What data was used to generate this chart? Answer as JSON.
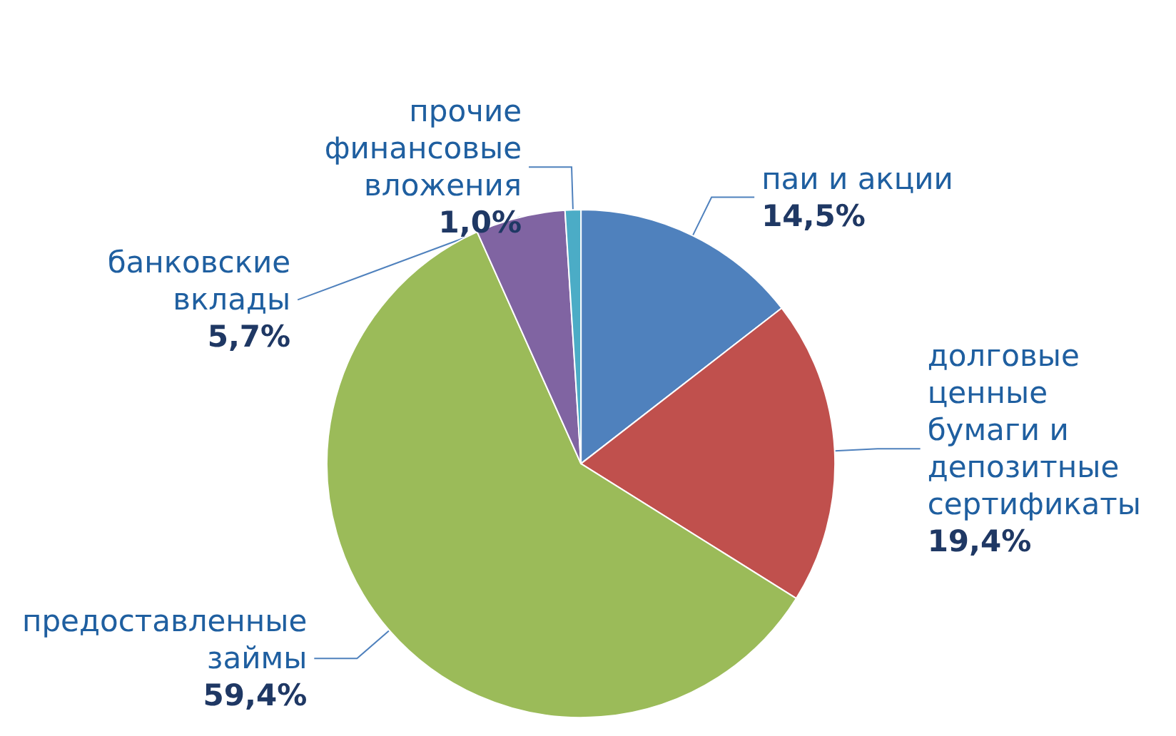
{
  "chart_data": {
    "type": "pie",
    "categories": [
      "паи и акции",
      "долговые ценные бумаги и депозитные сертификаты",
      "предоставленные займы",
      "банковские вклады",
      "прочие финансовые вложения"
    ],
    "values": [
      14.5,
      19.4,
      59.4,
      5.7,
      1.0
    ],
    "colors": [
      "#4f81bd",
      "#c0504d",
      "#9bbb59",
      "#8064a2",
      "#4bacc6"
    ],
    "value_labels": [
      "14,5%",
      "19,4%",
      "59,4%",
      "5,7%",
      "1,0%"
    ],
    "legend": false
  }
}
